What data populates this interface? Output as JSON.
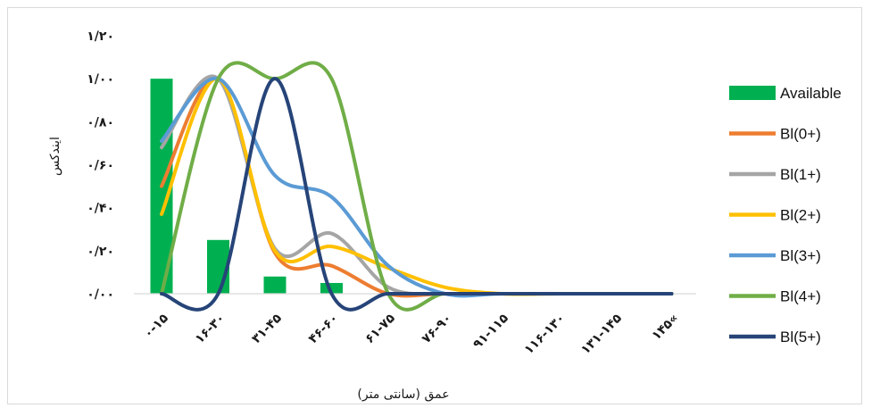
{
  "chart_data": {
    "type": "bar+line",
    "xlabel": "عمق (سانتی متر)",
    "ylabel": "ایندکس",
    "ylim": [
      0,
      1.2
    ],
    "yticks": [
      0,
      0.2,
      0.4,
      0.6,
      0.8,
      1.0,
      1.2
    ],
    "ytick_labels": [
      "۰/۰۰",
      "۰/۲۰",
      "۰/۴۰",
      "۰/۶۰",
      "۰/۸۰",
      "۱/۰۰",
      "۱/۲۰"
    ],
    "categories": [
      "۰-۱۵",
      "۱۶-۳۰",
      "۳۱-۴۵",
      "۴۶-۶۰",
      "۶۱-۷۵",
      "۷۶-۹۰",
      "۹۱-۱۱۵",
      "۱۱۶-۱۳۰",
      "۱۳۱-۱۴۵",
      "۱۴۵«"
    ],
    "grid": false,
    "legend_position": "right",
    "series": [
      {
        "name": "Available",
        "kind": "bar",
        "color": "#00b050",
        "values": [
          1.0,
          0.25,
          0.08,
          0.05,
          0,
          0,
          0,
          0,
          0,
          0
        ]
      },
      {
        "name": "Bl(0+)",
        "kind": "line",
        "color": "#ed7d31",
        "values": [
          0.5,
          1.0,
          0.19,
          0.13,
          0,
          0,
          0,
          0,
          0,
          0
        ]
      },
      {
        "name": "Bl(1+)",
        "kind": "line",
        "color": "#a5a5a5",
        "values": [
          0.68,
          1.0,
          0.21,
          0.28,
          0.03,
          0,
          0,
          0,
          0,
          0
        ]
      },
      {
        "name": "Bl(2+)",
        "kind": "line",
        "color": "#ffc000",
        "values": [
          0.37,
          1.0,
          0.2,
          0.22,
          0.12,
          0.03,
          0,
          0,
          0,
          0
        ]
      },
      {
        "name": "Bl(3+)",
        "kind": "line",
        "color": "#5b9bd5",
        "values": [
          0.71,
          1.0,
          0.55,
          0.45,
          0.13,
          0,
          0,
          0,
          0,
          0
        ]
      },
      {
        "name": "Bl(4+)",
        "kind": "line",
        "color": "#70ad47",
        "values": [
          0,
          1.0,
          1.0,
          1.0,
          0,
          0,
          0,
          0,
          0,
          0
        ]
      },
      {
        "name": "Bl(5+)",
        "kind": "line",
        "color": "#264478",
        "values": [
          0,
          0,
          1.0,
          0,
          0,
          0,
          0,
          0,
          0,
          0
        ]
      }
    ]
  }
}
